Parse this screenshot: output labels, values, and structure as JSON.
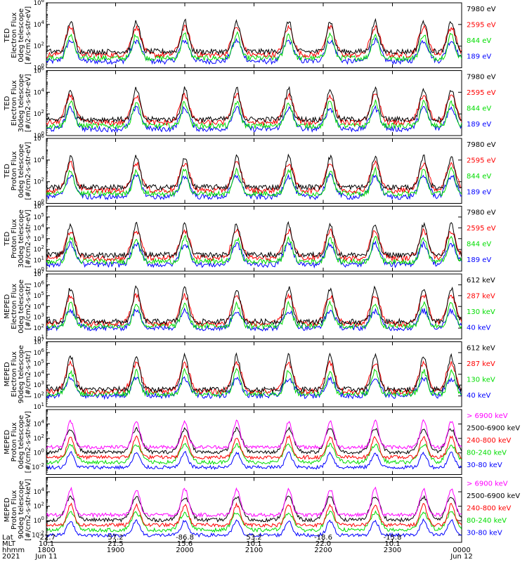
{
  "chart_data": [
    {
      "type": "line",
      "ylabel": [
        "TED",
        "Electron Flux",
        "0deg telescope",
        "[#/cm2-s-str-eV]"
      ],
      "yscale": "log",
      "ylim_exp": [
        0,
        6
      ],
      "ytick_exps": [
        0,
        2,
        4,
        6
      ],
      "legend": [
        {
          "name": "7980 eV",
          "color": "#000000"
        },
        {
          "name": "2595 eV",
          "color": "#ff0000"
        },
        {
          "name": "844 eV",
          "color": "#00dd00"
        },
        {
          "name": "189 eV",
          "color": "#0000ff"
        }
      ]
    },
    {
      "type": "line",
      "ylabel": [
        "TED",
        "Electron Flux",
        "30deg telescope",
        "[#/cm2-s-str-eV]"
      ],
      "yscale": "log",
      "ylim_exp": [
        0,
        6
      ],
      "ytick_exps": [
        0,
        2,
        4,
        6
      ],
      "legend": [
        {
          "name": "7980 eV",
          "color": "#000000"
        },
        {
          "name": "2595 eV",
          "color": "#ff0000"
        },
        {
          "name": "844 eV",
          "color": "#00dd00"
        },
        {
          "name": "189 eV",
          "color": "#0000ff"
        }
      ]
    },
    {
      "type": "line",
      "ylabel": [
        "TED",
        "Proton Flux",
        "0deg telescope",
        "[#/cm2-s-str-eV]"
      ],
      "yscale": "log",
      "ylim_exp": [
        0,
        6
      ],
      "ytick_exps": [
        0,
        2,
        4,
        6
      ],
      "legend": [
        {
          "name": "7980 eV",
          "color": "#000000"
        },
        {
          "name": "2595 eV",
          "color": "#ff0000"
        },
        {
          "name": "844 eV",
          "color": "#00dd00"
        },
        {
          "name": "189 eV",
          "color": "#0000ff"
        }
      ]
    },
    {
      "type": "line",
      "ylabel": [
        "TED",
        "Proton Flux",
        "30deg telescope",
        "[#/cm2-s-str-eV]"
      ],
      "yscale": "log",
      "ylim_exp": [
        0,
        6
      ],
      "ytick_exps": [
        0,
        1,
        2,
        3,
        4,
        5,
        6
      ],
      "legend": [
        {
          "name": "7980 eV",
          "color": "#000000"
        },
        {
          "name": "2595 eV",
          "color": "#ff0000"
        },
        {
          "name": "844 eV",
          "color": "#00dd00"
        },
        {
          "name": "189 eV",
          "color": "#0000ff"
        }
      ]
    },
    {
      "type": "line",
      "ylabel": [
        "MEPED",
        "Electron Flux",
        "0deg telescope",
        "[#/cm2-s-str]"
      ],
      "yscale": "log",
      "ylim_exp": [
        1,
        7
      ],
      "ytick_exps": [
        1,
        2,
        3,
        4,
        5,
        6,
        7
      ],
      "legend": [
        {
          "name": "612 keV",
          "color": "#000000"
        },
        {
          "name": "287 keV",
          "color": "#ff0000"
        },
        {
          "name": "130 keV",
          "color": "#00dd00"
        },
        {
          "name": "40 keV",
          "color": "#0000ff"
        }
      ]
    },
    {
      "type": "line",
      "ylabel": [
        "MEPED",
        "Electron Flux",
        "90deg telescope",
        "[#/cm2-s-str]"
      ],
      "yscale": "log",
      "ylim_exp": [
        1,
        7
      ],
      "ytick_exps": [
        1,
        2,
        3,
        4,
        5,
        6,
        7
      ],
      "legend": [
        {
          "name": "612 keV",
          "color": "#000000"
        },
        {
          "name": "287 keV",
          "color": "#ff0000"
        },
        {
          "name": "130 keV",
          "color": "#00dd00"
        },
        {
          "name": "40 keV",
          "color": "#0000ff"
        }
      ]
    },
    {
      "type": "line",
      "ylabel": [
        "MEPED",
        "Proton Flux",
        "0deg telescope",
        "[#/cm2-s-str-keV]"
      ],
      "yscale": "log",
      "ylim_exp": [
        -3,
        6
      ],
      "ytick_exps": [
        -2,
        0,
        2,
        4
      ],
      "legend": [
        {
          "name": "> 6900 keV",
          "color": "#ff00ff"
        },
        {
          "name": "2500-6900 keV",
          "color": "#000000"
        },
        {
          "name": "240-800 keV",
          "color": "#ff0000"
        },
        {
          "name": "80-240 keV",
          "color": "#00dd00"
        },
        {
          "name": "30-80 keV",
          "color": "#0000ff"
        }
      ]
    },
    {
      "type": "line",
      "ylabel": [
        "MEPED",
        "Proton Flux",
        "90deg telescope",
        "[#/cm2-s-str-keV]"
      ],
      "yscale": "log",
      "ylim_exp": [
        -3,
        6
      ],
      "ytick_exps": [
        -2,
        0,
        2,
        4
      ],
      "legend": [
        {
          "name": "> 6900 keV",
          "color": "#ff00ff"
        },
        {
          "name": "2500-6900 keV",
          "color": "#000000"
        },
        {
          "name": "240-800 keV",
          "color": "#ff0000"
        },
        {
          "name": "80-240 keV",
          "color": "#00dd00"
        },
        {
          "name": "30-80 keV",
          "color": "#0000ff"
        }
      ]
    }
  ],
  "x_axis": {
    "row_labels": [
      "Lat",
      "MLT",
      "hhmm",
      "2021"
    ],
    "ticks": [
      {
        "lat": "-22.7",
        "mlt": "10.1",
        "hhmm": "1800",
        "date": "Jun 11"
      },
      {
        "lat": "57.2",
        "mlt": "21.5",
        "hhmm": "1900",
        "date": ""
      },
      {
        "lat": "-86.8",
        "mlt": "15.6",
        "hhmm": "2000",
        "date": ""
      },
      {
        "lat": "53.2",
        "mlt": "10.1",
        "hhmm": "2100",
        "date": ""
      },
      {
        "lat": "-18.6",
        "mlt": "22.0",
        "hhmm": "2200",
        "date": ""
      },
      {
        "lat": "-15.8",
        "mlt": "10.1",
        "hhmm": "2300",
        "date": ""
      },
      {
        "lat": "",
        "mlt": "",
        "hhmm": "0000",
        "date": "Jun 12"
      }
    ],
    "tick_hours": [
      0,
      1,
      2,
      3,
      4,
      5,
      6
    ],
    "range_hours": [
      0,
      6
    ]
  },
  "pass_centers_hours": [
    0.35,
    1.3,
    2.0,
    2.75,
    3.5,
    4.1,
    4.75,
    5.45,
    5.85
  ],
  "colors": {
    "black": "#000000",
    "red": "#ff0000",
    "green": "#00dd00",
    "blue": "#0000ff",
    "magenta": "#ff00ff"
  }
}
